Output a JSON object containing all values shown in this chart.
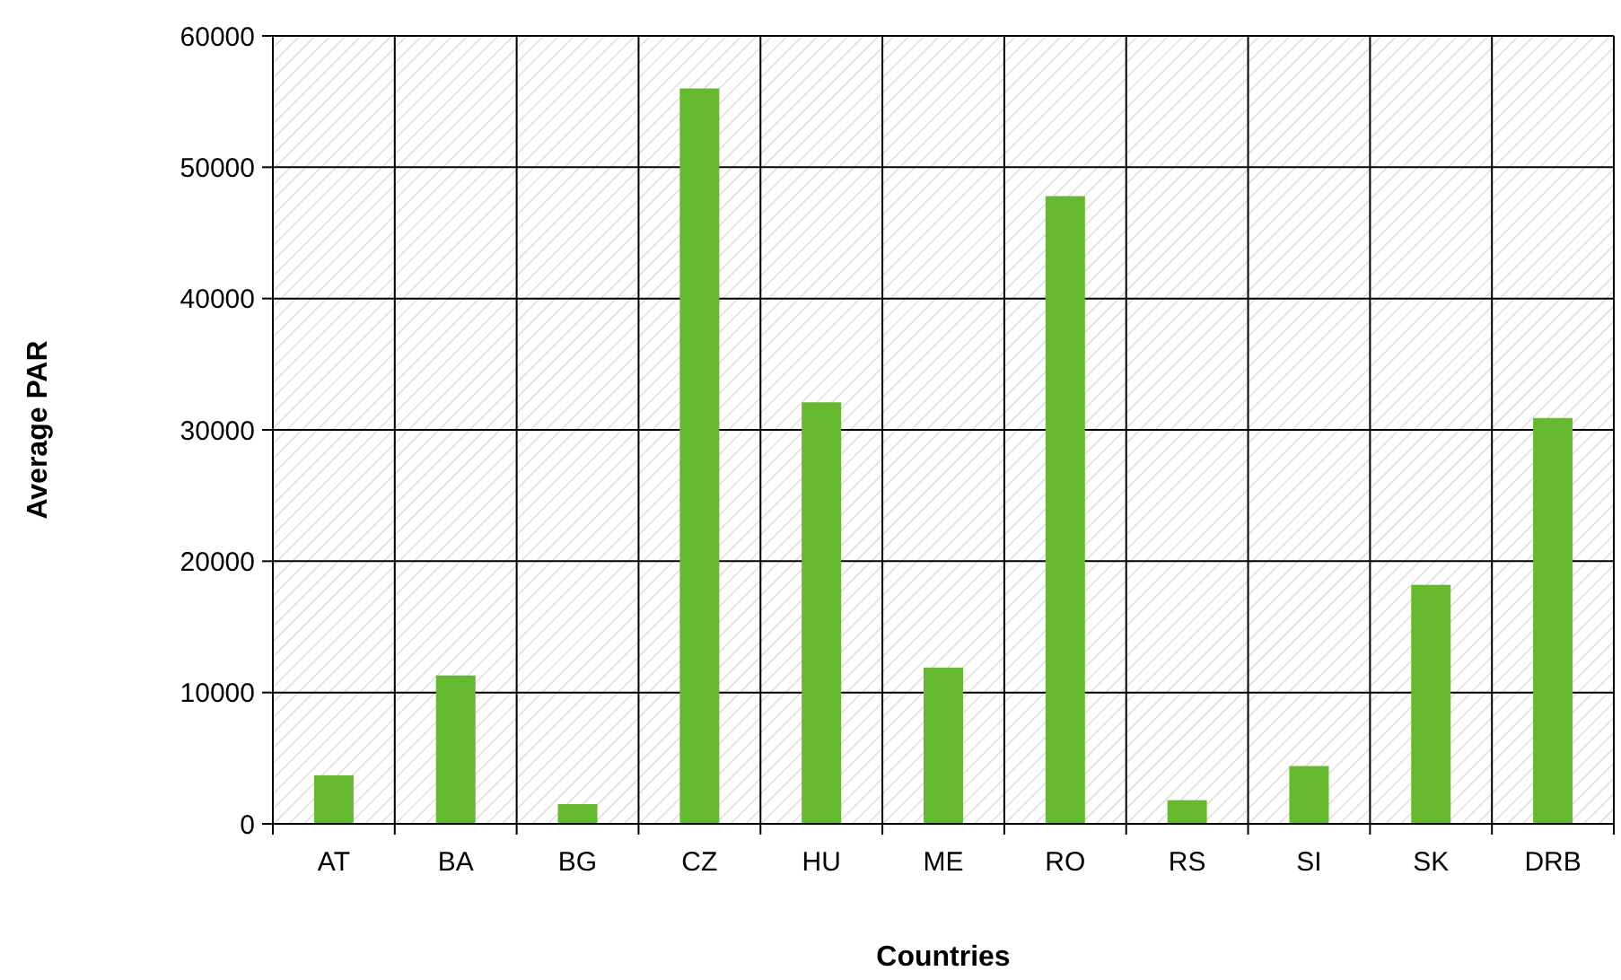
{
  "chart_data": {
    "type": "bar",
    "xlabel": "Countries",
    "ylabel": "Average PAR",
    "categories": [
      "AT",
      "BA",
      "BG",
      "CZ",
      "HU",
      "ME",
      "RO",
      "RS",
      "SI",
      "SK",
      "DRB"
    ],
    "values": [
      3700,
      11300,
      1500,
      56000,
      32100,
      11900,
      47800,
      1800,
      4400,
      18200,
      30900
    ],
    "color": "#66b82f",
    "ylim": [
      0,
      60000
    ],
    "yticks": [
      0,
      10000,
      20000,
      30000,
      40000,
      50000,
      60000
    ],
    "grid": true
  }
}
